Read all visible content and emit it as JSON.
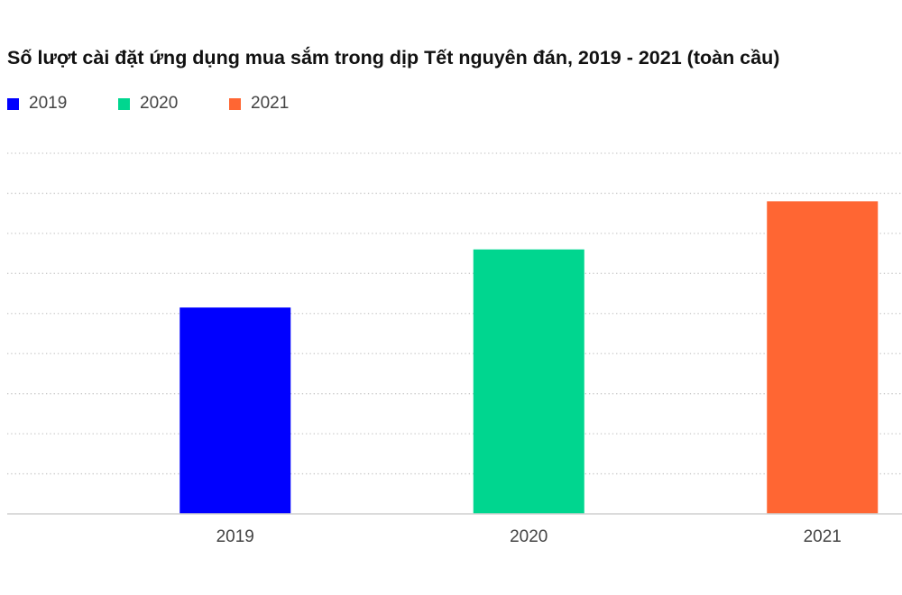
{
  "chart_data": {
    "type": "bar",
    "title": "Số lượt cài đặt ứng dụng mua sắm trong dịp Tết nguyên đán, 2019 - 2021 (toàn cầu)",
    "categories": [
      "2019",
      "2020",
      "2021"
    ],
    "values": [
      5.15,
      6.6,
      7.8
    ],
    "colors": [
      "#0000ff",
      "#00d68f",
      "#ff6633"
    ],
    "legend": [
      {
        "label": "2019",
        "color": "#0000ff"
      },
      {
        "label": "2020",
        "color": "#00d68f"
      },
      {
        "label": "2021",
        "color": "#ff6633"
      }
    ],
    "legend_position": "top-left",
    "xlabel": "",
    "ylabel": "",
    "ylim": [
      0,
      9
    ],
    "grid": true,
    "y_tick_labels_shown": false
  }
}
